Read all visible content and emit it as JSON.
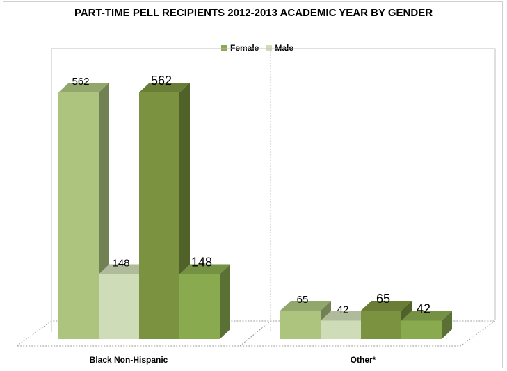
{
  "chart_data": {
    "type": "bar",
    "title": "PART-TIME PELL RECIPIENTS  2012-2013 ACADEMIC YEAR  BY GENDER",
    "categories": [
      "Black Non-Hispanic",
      "Other*"
    ],
    "series": [
      {
        "name": "Female",
        "values": [
          562,
          65
        ]
      },
      {
        "name": "Male",
        "values": [
          148,
          42
        ]
      },
      {
        "values": [
          562,
          65
        ]
      },
      {
        "values": [
          148,
          42
        ]
      }
    ],
    "data_labels": [
      [
        "562",
        "148",
        "562",
        "148"
      ],
      [
        "65",
        "42",
        "65",
        "42"
      ]
    ],
    "ylim": [
      0,
      600
    ],
    "grid": false,
    "legend": "top",
    "colors": {
      "series_1": "#acc47e",
      "series_2": "#cfdcb8",
      "series_3": "#7b9340",
      "series_4": "#8aaa4f",
      "legend_female": "#8aaa4f",
      "legend_male": "#cfdcb8"
    }
  }
}
